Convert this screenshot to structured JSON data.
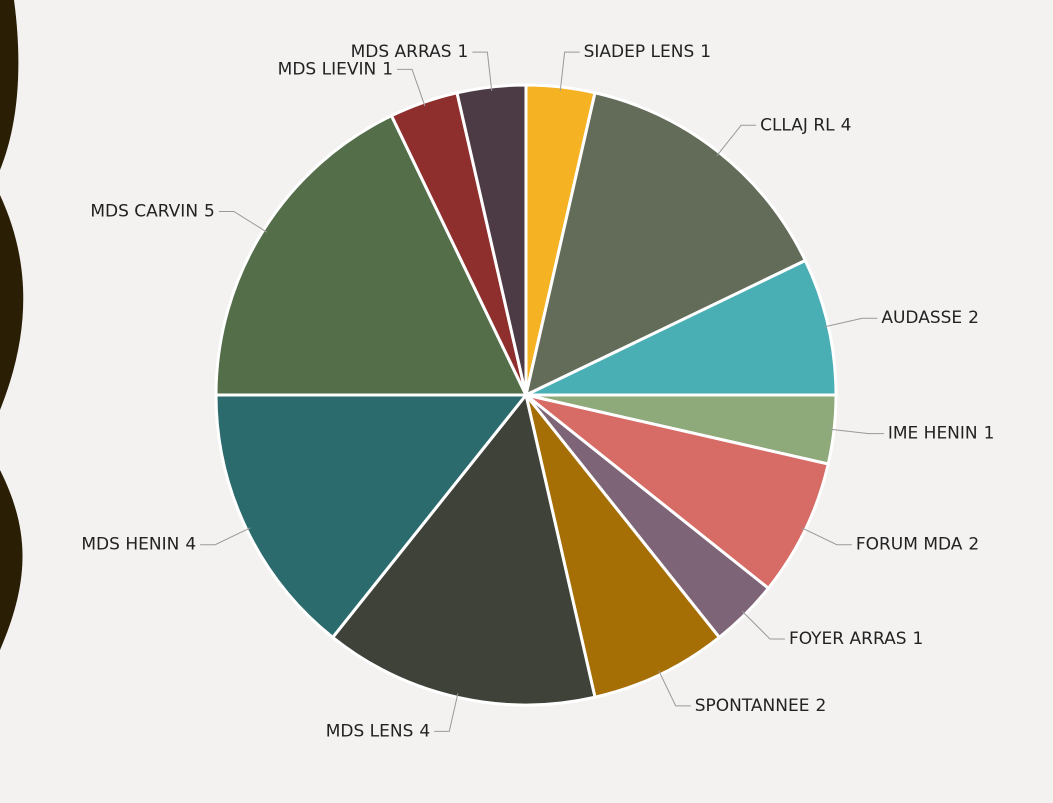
{
  "chart_data": {
    "type": "pie",
    "categories": [
      "SIADEP LENS",
      "CLLAJ RL",
      "AUDASSE",
      "IME HENIN",
      "FORUM MDA",
      "FOYER ARRAS",
      "SPONTANNEE",
      "MDS LENS",
      "MDS HENIN",
      "MDS CARVIN",
      "MDS LIEVIN",
      "MDS ARRAS"
    ],
    "values": [
      1,
      4,
      2,
      1,
      2,
      1,
      2,
      4,
      4,
      5,
      1,
      1
    ],
    "colors": [
      "#f5b324",
      "#636b59",
      "#4aafb5",
      "#8ea97a",
      "#d76b66",
      "#7e6477",
      "#a66f06",
      "#3e4239",
      "#2b6b6d",
      "#536e49",
      "#8e2e2d",
      "#4c3a45"
    ]
  }
}
